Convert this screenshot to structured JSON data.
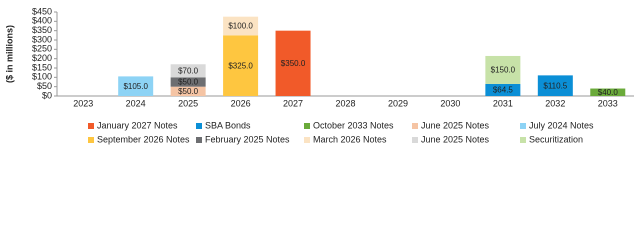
{
  "chart_data": {
    "type": "stacked_bar",
    "y_label": "($ in millions)",
    "categories": [
      "2023",
      "2024",
      "2025",
      "2026",
      "2027",
      "2028",
      "2029",
      "2030",
      "2031",
      "2032",
      "2033"
    ],
    "ylim": [
      0,
      450
    ],
    "yticks": [
      {
        "value": 0,
        "label": "$0"
      },
      {
        "value": 50,
        "label": "$50"
      },
      {
        "value": 100,
        "label": "$100"
      },
      {
        "value": 150,
        "label": "$150"
      },
      {
        "value": 200,
        "label": "$200"
      },
      {
        "value": 250,
        "label": "$250"
      },
      {
        "value": 300,
        "label": "$300"
      },
      {
        "value": 350,
        "label": "$350"
      },
      {
        "value": 400,
        "label": "$400"
      },
      {
        "value": 450,
        "label": "$450"
      }
    ],
    "series": [
      {
        "name": "January 2027 Notes",
        "color": "#f15a29",
        "values": [
          null,
          null,
          null,
          null,
          350.0,
          null,
          null,
          null,
          null,
          null,
          null
        ],
        "value_labels": [
          null,
          null,
          null,
          null,
          "$350.0",
          null,
          null,
          null,
          null,
          null,
          null
        ]
      },
      {
        "name": "SBA Bonds",
        "color": "#0b8fd6",
        "values": [
          null,
          null,
          null,
          null,
          null,
          null,
          null,
          null,
          64.5,
          110.5,
          null
        ],
        "value_labels": [
          null,
          null,
          null,
          null,
          null,
          null,
          null,
          null,
          "$64.5",
          "$110.5",
          null
        ]
      },
      {
        "name": "October 2033 Notes",
        "color": "#6aaa3a",
        "values": [
          null,
          null,
          null,
          null,
          null,
          null,
          null,
          null,
          null,
          null,
          40.0
        ],
        "value_labels": [
          null,
          null,
          null,
          null,
          null,
          null,
          null,
          null,
          null,
          null,
          "$40.0"
        ]
      },
      {
        "name": "June 2025 Notes",
        "color": "#f5c4a4",
        "values": [
          null,
          null,
          50.0,
          null,
          null,
          null,
          null,
          null,
          null,
          null,
          null
        ],
        "value_labels": [
          null,
          null,
          "$50.0",
          null,
          null,
          null,
          null,
          null,
          null,
          null,
          null
        ]
      },
      {
        "name": "July 2024 Notes",
        "color": "#8dd3f5",
        "values": [
          null,
          105.0,
          null,
          null,
          null,
          null,
          null,
          null,
          null,
          null,
          null
        ],
        "value_labels": [
          null,
          "$105.0",
          null,
          null,
          null,
          null,
          null,
          null,
          null,
          null,
          null
        ]
      },
      {
        "name": "September 2026 Notes",
        "color": "#fec640",
        "values": [
          null,
          null,
          null,
          325.0,
          null,
          null,
          null,
          null,
          null,
          null,
          null
        ],
        "value_labels": [
          null,
          null,
          null,
          "$325.0",
          null,
          null,
          null,
          null,
          null,
          null,
          null
        ]
      },
      {
        "name": "February 2025 Notes",
        "color": "#6d6e71",
        "values": [
          null,
          null,
          50.0,
          null,
          null,
          null,
          null,
          null,
          null,
          null,
          null
        ],
        "value_labels": [
          null,
          null,
          "$50.0",
          null,
          null,
          null,
          null,
          null,
          null,
          null,
          null
        ]
      },
      {
        "name": "March 2026 Notes",
        "color": "#fbe3c3",
        "values": [
          null,
          null,
          null,
          100.0,
          null,
          null,
          null,
          null,
          null,
          null,
          null
        ],
        "value_labels": [
          null,
          null,
          null,
          "$100.0",
          null,
          null,
          null,
          null,
          null,
          null,
          null
        ]
      },
      {
        "name": "June 2025 Notes",
        "color": "#d9d9d9",
        "values": [
          null,
          null,
          70.0,
          null,
          null,
          null,
          null,
          null,
          null,
          null,
          null
        ],
        "value_labels": [
          null,
          null,
          "$70.0",
          null,
          null,
          null,
          null,
          null,
          null,
          null,
          null
        ]
      },
      {
        "name": "Securitization",
        "color": "#c7e2a8",
        "values": [
          null,
          null,
          null,
          null,
          null,
          null,
          null,
          null,
          150.0,
          null,
          null
        ],
        "value_labels": [
          null,
          null,
          null,
          null,
          null,
          null,
          null,
          null,
          "$150.0",
          null,
          null
        ]
      }
    ]
  }
}
